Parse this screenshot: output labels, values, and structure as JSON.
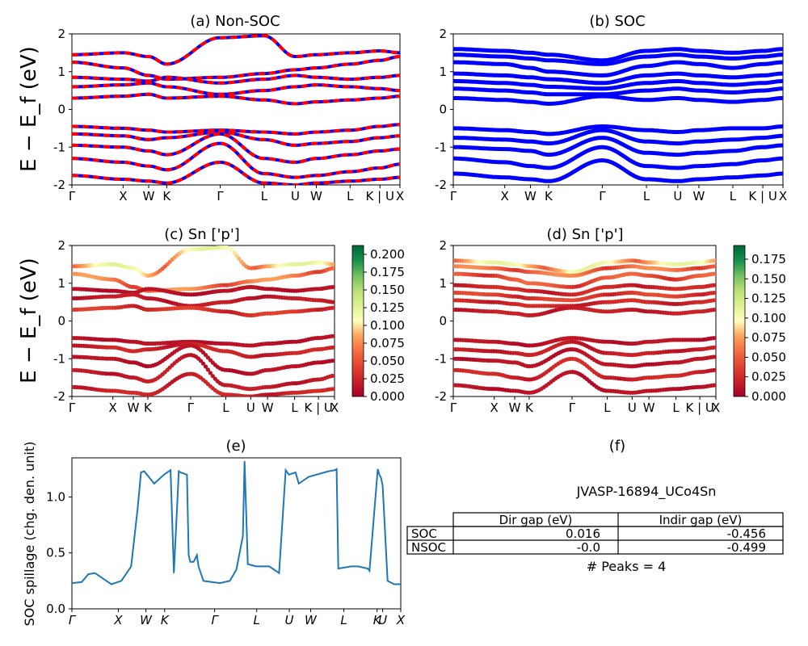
{
  "chart_data": [
    {
      "id": "a",
      "type": "line",
      "title": "(a) Non-SOC",
      "ylabel": "E − E_f (eV)",
      "ylim": [
        -2,
        2
      ],
      "yticks": [
        -2,
        -1,
        0,
        1,
        2
      ],
      "k_labels": [
        "Γ",
        "X",
        "W",
        "K",
        "Γ",
        "L",
        "U",
        "W",
        "L",
        "K | U",
        "X"
      ],
      "k_positions": [
        0,
        0.156,
        0.234,
        0.289,
        0.452,
        0.586,
        0.681,
        0.745,
        0.848,
        0.939,
        1.0
      ],
      "series": [
        {
          "color": "#0000ff",
          "style": "solid"
        },
        {
          "color": "#ff0000",
          "style": "dashed"
        }
      ],
      "bands": [
        [
          1.45,
          1.5,
          1.4,
          1.2,
          1.9,
          1.95,
          1.4,
          1.45,
          1.5,
          1.55,
          1.5
        ],
        [
          1.25,
          1.1,
          0.9,
          0.8,
          0.85,
          0.95,
          1.05,
          1.1,
          1.2,
          1.3,
          1.4
        ],
        [
          0.85,
          0.8,
          0.75,
          0.85,
          0.7,
          0.8,
          0.9,
          0.85,
          0.8,
          0.85,
          0.9
        ],
        [
          0.6,
          0.65,
          0.7,
          0.6,
          0.4,
          0.5,
          0.6,
          0.65,
          0.6,
          0.55,
          0.5
        ],
        [
          0.3,
          0.35,
          0.4,
          0.3,
          0.35,
          0.25,
          0.15,
          0.2,
          0.25,
          0.3,
          0.35
        ],
        [
          -0.45,
          -0.5,
          -0.55,
          -0.6,
          -0.55,
          -0.6,
          -0.65,
          -0.6,
          -0.55,
          -0.45,
          -0.4
        ],
        [
          -0.65,
          -0.7,
          -0.8,
          -0.75,
          -0.6,
          -0.8,
          -0.95,
          -0.9,
          -0.85,
          -0.75,
          -0.7
        ],
        [
          -0.95,
          -1.0,
          -1.1,
          -1.2,
          -0.65,
          -1.3,
          -1.4,
          -1.3,
          -1.2,
          -1.1,
          -1.05
        ],
        [
          -1.3,
          -1.4,
          -1.5,
          -1.6,
          -0.9,
          -1.7,
          -1.8,
          -1.75,
          -1.65,
          -1.55,
          -1.45
        ],
        [
          -1.75,
          -1.85,
          -1.9,
          -1.95,
          -1.4,
          -1.95,
          -2.0,
          -1.95,
          -1.9,
          -1.85,
          -1.8
        ]
      ]
    },
    {
      "id": "b",
      "type": "line",
      "title": "(b) SOC",
      "ylim": [
        -2,
        2
      ],
      "yticks": [
        -2,
        -1,
        0,
        1,
        2
      ],
      "k_labels": [
        "Γ",
        "X",
        "W",
        "K",
        "Γ",
        "L",
        "U",
        "W",
        "L",
        "K | U",
        "X"
      ],
      "k_positions": [
        0,
        0.156,
        0.234,
        0.289,
        0.452,
        0.586,
        0.681,
        0.745,
        0.848,
        0.939,
        1.0
      ],
      "series": [
        {
          "color": "#0000ff",
          "style": "solid"
        }
      ],
      "bands": [
        [
          1.6,
          1.55,
          1.5,
          1.45,
          1.3,
          1.55,
          1.6,
          1.55,
          1.5,
          1.55,
          1.6
        ],
        [
          1.45,
          1.4,
          1.35,
          1.3,
          1.2,
          1.4,
          1.45,
          1.4,
          1.35,
          1.4,
          1.45
        ],
        [
          1.25,
          1.2,
          1.1,
          1.0,
          0.9,
          1.15,
          1.25,
          1.2,
          1.1,
          1.2,
          1.25
        ],
        [
          0.95,
          0.9,
          0.85,
          0.8,
          0.7,
          0.9,
          0.95,
          0.9,
          0.85,
          0.9,
          0.95
        ],
        [
          0.75,
          0.7,
          0.65,
          0.6,
          0.55,
          0.7,
          0.75,
          0.7,
          0.65,
          0.7,
          0.75
        ],
        [
          0.55,
          0.5,
          0.45,
          0.4,
          0.4,
          0.5,
          0.55,
          0.5,
          0.45,
          0.5,
          0.55
        ],
        [
          0.3,
          0.25,
          0.2,
          0.15,
          0.35,
          0.25,
          0.3,
          0.25,
          0.2,
          0.25,
          0.3
        ],
        [
          -0.5,
          -0.55,
          -0.6,
          -0.65,
          -0.45,
          -0.55,
          -0.6,
          -0.55,
          -0.5,
          -0.5,
          -0.45
        ],
        [
          -0.75,
          -0.8,
          -0.85,
          -0.9,
          -0.55,
          -0.85,
          -0.9,
          -0.85,
          -0.8,
          -0.75,
          -0.7
        ],
        [
          -1.0,
          -1.05,
          -1.1,
          -1.2,
          -0.75,
          -1.15,
          -1.2,
          -1.15,
          -1.1,
          -1.0,
          -0.95
        ],
        [
          -1.3,
          -1.4,
          -1.5,
          -1.55,
          -1.0,
          -1.5,
          -1.55,
          -1.5,
          -1.45,
          -1.35,
          -1.3
        ],
        [
          -1.7,
          -1.8,
          -1.85,
          -1.9,
          -1.35,
          -1.85,
          -1.9,
          -1.85,
          -1.8,
          -1.75,
          -1.7
        ]
      ]
    },
    {
      "id": "c",
      "type": "scatter",
      "title": "(c)  Sn ['p']",
      "ylabel": "E − E_f (eV)",
      "ylim": [
        -2,
        2
      ],
      "yticks": [
        -2,
        -1,
        0,
        1,
        2
      ],
      "k_labels": [
        "Γ",
        "X",
        "W",
        "K",
        "Γ",
        "L",
        "U",
        "W",
        "L",
        "K | U",
        "X"
      ],
      "k_positions": [
        0,
        0.156,
        0.234,
        0.289,
        0.452,
        0.586,
        0.681,
        0.745,
        0.848,
        0.939,
        1.0
      ],
      "colormap": "RdYlGn",
      "colorbar_range": [
        0,
        0.2125
      ],
      "colorbar_ticks": [
        "0.000",
        "0.025",
        "0.050",
        "0.075",
        "0.100",
        "0.125",
        "0.150",
        "0.175",
        "0.200"
      ],
      "bands": [
        [
          1.45,
          1.5,
          1.4,
          1.2,
          1.9,
          1.95,
          1.4,
          1.45,
          1.5,
          1.55,
          1.5
        ],
        [
          1.25,
          1.1,
          0.9,
          0.8,
          0.85,
          0.95,
          1.05,
          1.1,
          1.2,
          1.3,
          1.4
        ],
        [
          0.85,
          0.8,
          0.75,
          0.85,
          0.7,
          0.8,
          0.9,
          0.85,
          0.8,
          0.85,
          0.9
        ],
        [
          0.6,
          0.65,
          0.7,
          0.6,
          0.4,
          0.5,
          0.6,
          0.65,
          0.6,
          0.55,
          0.5
        ],
        [
          0.3,
          0.35,
          0.4,
          0.3,
          0.35,
          0.25,
          0.15,
          0.2,
          0.25,
          0.3,
          0.35
        ],
        [
          -0.45,
          -0.5,
          -0.55,
          -0.6,
          -0.55,
          -0.6,
          -0.65,
          -0.6,
          -0.55,
          -0.45,
          -0.4
        ],
        [
          -0.65,
          -0.7,
          -0.8,
          -0.75,
          -0.6,
          -0.8,
          -0.95,
          -0.9,
          -0.85,
          -0.75,
          -0.7
        ],
        [
          -0.95,
          -1.0,
          -1.1,
          -1.2,
          -0.65,
          -1.3,
          -1.4,
          -1.3,
          -1.2,
          -1.1,
          -1.05
        ],
        [
          -1.3,
          -1.4,
          -1.5,
          -1.6,
          -0.9,
          -1.7,
          -1.8,
          -1.75,
          -1.65,
          -1.55,
          -1.45
        ],
        [
          -1.75,
          -1.85,
          -1.9,
          -1.95,
          -1.4,
          -1.95,
          -2.0,
          -1.95,
          -1.9,
          -1.85,
          -1.8
        ]
      ],
      "band_weights": [
        0.09,
        0.06,
        0.01,
        0.015,
        0.03,
        0.01,
        0.02,
        0.01,
        0.015,
        0.02
      ]
    },
    {
      "id": "d",
      "type": "scatter",
      "title": "(d) Sn ['p']",
      "ylim": [
        -2,
        2
      ],
      "yticks": [
        -2,
        -1,
        0,
        1,
        2
      ],
      "k_labels": [
        "Γ",
        "X",
        "W",
        "K",
        "Γ",
        "L",
        "U",
        "W",
        "L",
        "K | U",
        "X"
      ],
      "k_positions": [
        0,
        0.156,
        0.234,
        0.289,
        0.452,
        0.586,
        0.681,
        0.745,
        0.848,
        0.939,
        1.0
      ],
      "colormap": "RdYlGn",
      "colorbar_range": [
        0,
        0.1925
      ],
      "colorbar_ticks": [
        "0.000",
        "0.025",
        "0.050",
        "0.075",
        "0.100",
        "0.125",
        "0.150",
        "0.175"
      ],
      "bands": [
        [
          1.6,
          1.55,
          1.5,
          1.45,
          1.3,
          1.55,
          1.6,
          1.55,
          1.5,
          1.55,
          1.6
        ],
        [
          1.45,
          1.4,
          1.35,
          1.3,
          1.2,
          1.4,
          1.45,
          1.4,
          1.35,
          1.4,
          1.45
        ],
        [
          1.25,
          1.2,
          1.1,
          1.0,
          0.9,
          1.15,
          1.25,
          1.2,
          1.1,
          1.2,
          1.25
        ],
        [
          0.95,
          0.9,
          0.85,
          0.8,
          0.7,
          0.9,
          0.95,
          0.9,
          0.85,
          0.9,
          0.95
        ],
        [
          0.75,
          0.7,
          0.65,
          0.6,
          0.55,
          0.7,
          0.75,
          0.7,
          0.65,
          0.7,
          0.75
        ],
        [
          0.55,
          0.5,
          0.45,
          0.4,
          0.4,
          0.5,
          0.55,
          0.5,
          0.45,
          0.5,
          0.55
        ],
        [
          0.3,
          0.25,
          0.2,
          0.15,
          0.35,
          0.25,
          0.3,
          0.25,
          0.2,
          0.25,
          0.3
        ],
        [
          -0.5,
          -0.55,
          -0.6,
          -0.65,
          -0.45,
          -0.55,
          -0.6,
          -0.55,
          -0.5,
          -0.5,
          -0.45
        ],
        [
          -0.75,
          -0.8,
          -0.85,
          -0.9,
          -0.55,
          -0.85,
          -0.9,
          -0.85,
          -0.8,
          -0.75,
          -0.7
        ],
        [
          -1.0,
          -1.05,
          -1.1,
          -1.2,
          -0.75,
          -1.15,
          -1.2,
          -1.15,
          -1.1,
          -1.0,
          -0.95
        ],
        [
          -1.3,
          -1.4,
          -1.5,
          -1.55,
          -1.0,
          -1.5,
          -1.55,
          -1.5,
          -1.45,
          -1.35,
          -1.3
        ],
        [
          -1.7,
          -1.8,
          -1.85,
          -1.9,
          -1.35,
          -1.85,
          -1.9,
          -1.85,
          -1.8,
          -1.75,
          -1.7
        ]
      ],
      "band_weights": [
        0.08,
        0.05,
        0.04,
        0.02,
        0.03,
        0.02,
        0.015,
        0.01,
        0.015,
        0.01,
        0.02,
        0.01
      ]
    },
    {
      "id": "e",
      "type": "line",
      "title": "(e)",
      "ylabel": "SOC spillage (chg. den. unit)",
      "ylim": [
        0,
        1.35
      ],
      "yticks": [
        "0.0",
        "0.5",
        "1.0"
      ],
      "ytick_values": [
        0,
        0.5,
        1.0
      ],
      "k_labels": [
        "Γ",
        "X",
        "W",
        "K",
        "Γ",
        "L",
        "U",
        "W",
        "L",
        "K",
        "U",
        "X"
      ],
      "k_positions": [
        0,
        0.141,
        0.225,
        0.282,
        0.434,
        0.562,
        0.661,
        0.726,
        0.827,
        0.928,
        0.945,
        1.0
      ],
      "series": [
        {
          "color": "#1f77b4"
        }
      ],
      "x": [
        0,
        0.03,
        0.05,
        0.07,
        0.09,
        0.12,
        0.15,
        0.18,
        0.2,
        0.21,
        0.22,
        0.25,
        0.28,
        0.3,
        0.31,
        0.325,
        0.33,
        0.35,
        0.355,
        0.36,
        0.37,
        0.38,
        0.385,
        0.4,
        0.45,
        0.48,
        0.5,
        0.52,
        0.525,
        0.535,
        0.56,
        0.6,
        0.63,
        0.65,
        0.66,
        0.68,
        0.69,
        0.72,
        0.78,
        0.8,
        0.805,
        0.81,
        0.85,
        0.87,
        0.9,
        0.905,
        0.93,
        0.935,
        0.94,
        0.945,
        0.96,
        0.98,
        1.0
      ],
      "y": [
        0.23,
        0.24,
        0.31,
        0.32,
        0.28,
        0.22,
        0.25,
        0.38,
        0.9,
        1.22,
        1.23,
        1.12,
        1.2,
        1.24,
        0.32,
        1.23,
        1.22,
        1.2,
        0.48,
        0.42,
        0.42,
        0.48,
        0.38,
        0.25,
        0.23,
        0.25,
        0.35,
        0.65,
        1.32,
        0.4,
        0.38,
        0.38,
        0.32,
        1.24,
        1.2,
        1.22,
        1.12,
        1.18,
        1.23,
        1.24,
        1.25,
        0.36,
        0.38,
        0.38,
        0.36,
        0.34,
        1.25,
        1.2,
        1.17,
        1.1,
        0.25,
        0.22,
        0.22
      ]
    }
  ],
  "table": {
    "title": "(f)",
    "subtitle": "JVASP-16894_UCo4Sn",
    "headers": [
      "",
      "Dir gap (eV)",
      "Indir gap (eV)"
    ],
    "rows": [
      [
        "SOC",
        "0.016",
        "-0.456"
      ],
      [
        "NSOC",
        "-0.0",
        "-0.499"
      ]
    ],
    "footer": "# Peaks = 4"
  }
}
